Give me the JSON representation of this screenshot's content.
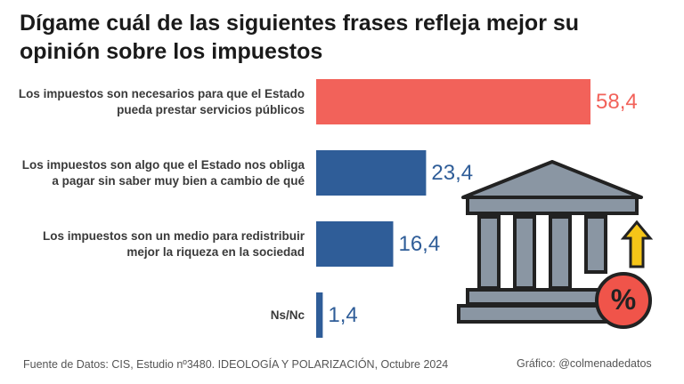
{
  "chart_data": {
    "type": "bar",
    "orientation": "horizontal",
    "title": "Dígame cuál de las siguientes frases refleja mejor su opinión sobre los impuestos",
    "categories": [
      "Los impuestos son necesarios para que el Estado pueda prestar servicios públicos",
      "Los impuestos son algo que el Estado nos obliga a pagar sin saber muy bien a cambio de qué",
      "Los impuestos son un medio para redistribuir mejor la riqueza en la sociedad",
      "Ns/Nc"
    ],
    "values": [
      58.4,
      23.4,
      16.4,
      1.4
    ],
    "value_labels": [
      "58,4",
      "23,4",
      "16,4",
      "1,4"
    ],
    "colors": [
      "#f2625a",
      "#2f5d98",
      "#2f5d98",
      "#2f5d98"
    ],
    "source": "Fuente de Datos: CIS, Estudio nº3480. IDEOLOGÍA Y POLARIZACIÓN, Octubre 2024",
    "credit": "Gráfico: @colmenadedatos"
  }
}
